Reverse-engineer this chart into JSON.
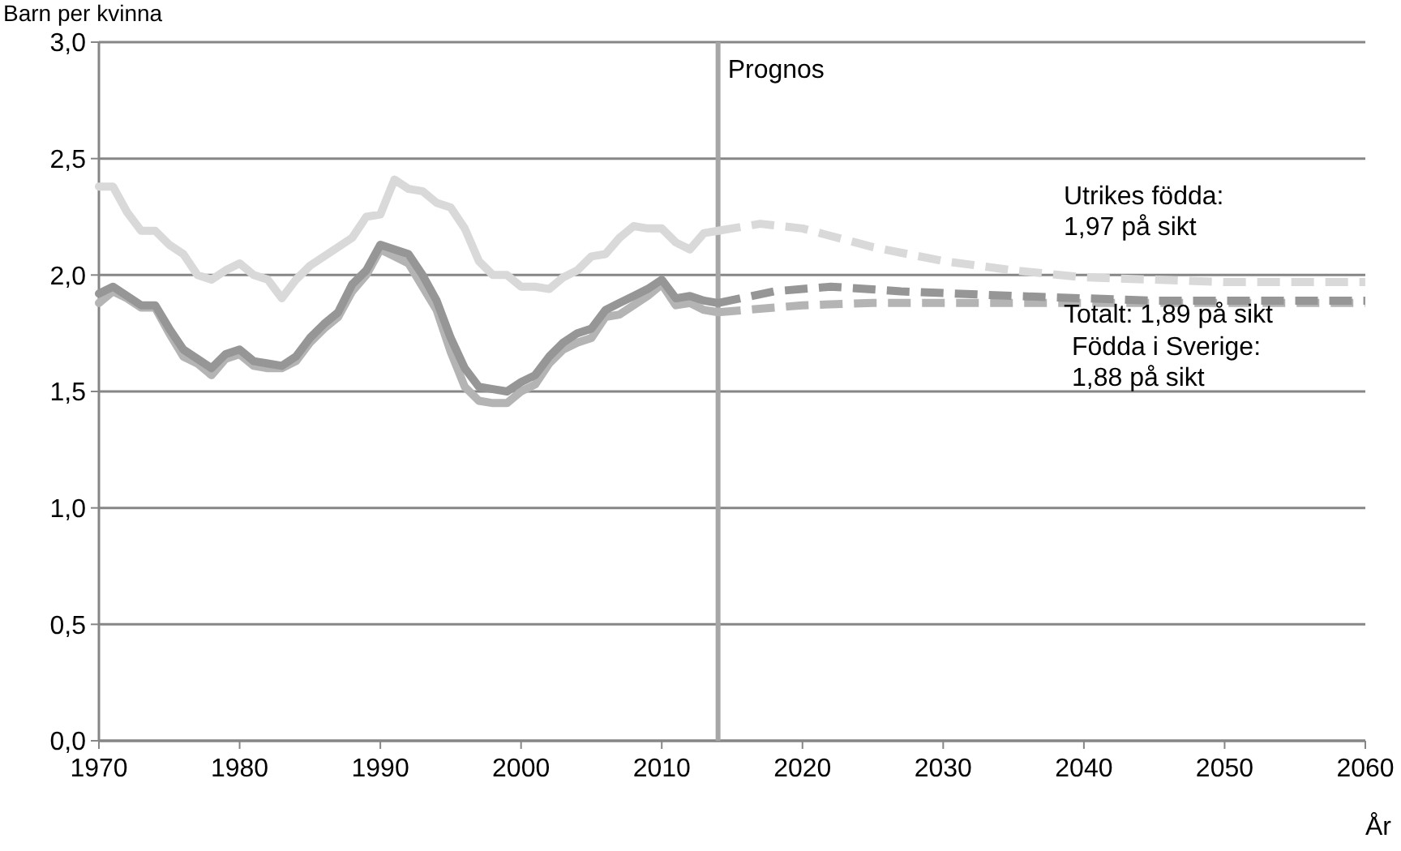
{
  "chart_data": {
    "type": "line",
    "ylabel": "Barn per kvinna",
    "xlabel": "År",
    "xlim": [
      1970,
      2060
    ],
    "xticks": [
      1970,
      1980,
      1990,
      2000,
      2010,
      2020,
      2030,
      2040,
      2050,
      2060
    ],
    "ylim": [
      0,
      3
    ],
    "yticks": [
      {
        "value": 0,
        "label": "0,0"
      },
      {
        "value": 0.5,
        "label": "0,5"
      },
      {
        "value": 1,
        "label": "1,0"
      },
      {
        "value": 1.5,
        "label": "1,5"
      },
      {
        "value": 2,
        "label": "2,0"
      },
      {
        "value": 2.5,
        "label": "2,5"
      },
      {
        "value": 3,
        "label": "3,0"
      }
    ],
    "grid": "y",
    "marker": "none",
    "series": [
      {
        "color": "#d9d9d9",
        "line_style": "solid",
        "x": [
          1970,
          1971,
          1972,
          1973,
          1974,
          1975,
          1976,
          1977,
          1978,
          1979,
          1980,
          1981,
          1982,
          1983,
          1984,
          1985,
          1986,
          1987,
          1988,
          1989,
          1990,
          1991,
          1992,
          1993,
          1994,
          1995,
          1996,
          1997,
          1998,
          1999,
          2000,
          2001,
          2002,
          2003,
          2004,
          2005,
          2006,
          2007,
          2008,
          2009,
          2010,
          2011,
          2012,
          2013,
          2014
        ],
        "values": [
          2.38,
          2.38,
          2.27,
          2.19,
          2.19,
          2.13,
          2.09,
          2.0,
          1.98,
          2.02,
          2.05,
          2.0,
          1.98,
          1.9,
          1.98,
          2.04,
          2.08,
          2.12,
          2.16,
          2.25,
          2.26,
          2.41,
          2.37,
          2.36,
          2.31,
          2.29,
          2.2,
          2.06,
          2.0,
          2.0,
          1.95,
          1.95,
          1.94,
          1.99,
          2.02,
          2.08,
          2.09,
          2.16,
          2.21,
          2.2,
          2.2,
          2.14,
          2.11,
          2.18,
          2.19
        ]
      },
      {
        "color": "#b4b4b4",
        "line_style": "solid",
        "x": [
          1970,
          1971,
          1972,
          1973,
          1974,
          1975,
          1976,
          1977,
          1978,
          1979,
          1980,
          1981,
          1982,
          1983,
          1984,
          1985,
          1986,
          1987,
          1988,
          1989,
          1990,
          1991,
          1992,
          1993,
          1994,
          1995,
          1996,
          1997,
          1998,
          1999,
          2000,
          2001,
          2002,
          2003,
          2004,
          2005,
          2006,
          2007,
          2008,
          2009,
          2010,
          2011,
          2012,
          2013,
          2014
        ],
        "values": [
          1.88,
          1.93,
          1.9,
          1.86,
          1.86,
          1.75,
          1.65,
          1.62,
          1.57,
          1.64,
          1.66,
          1.61,
          1.6,
          1.6,
          1.63,
          1.71,
          1.77,
          1.82,
          1.93,
          2.0,
          2.11,
          2.08,
          2.05,
          1.95,
          1.85,
          1.67,
          1.52,
          1.46,
          1.45,
          1.45,
          1.5,
          1.53,
          1.62,
          1.68,
          1.71,
          1.73,
          1.82,
          1.83,
          1.87,
          1.91,
          1.96,
          1.87,
          1.88,
          1.85,
          1.84
        ]
      },
      {
        "color": "#969696",
        "line_style": "solid",
        "x": [
          1970,
          1971,
          1972,
          1973,
          1974,
          1975,
          1976,
          1977,
          1978,
          1979,
          1980,
          1981,
          1982,
          1983,
          1984,
          1985,
          1986,
          1987,
          1988,
          1989,
          1990,
          1991,
          1992,
          1993,
          1994,
          1995,
          1996,
          1997,
          1998,
          1999,
          2000,
          2001,
          2002,
          2003,
          2004,
          2005,
          2006,
          2007,
          2008,
          2009,
          2010,
          2011,
          2012,
          2013,
          2014
        ],
        "values": [
          1.92,
          1.95,
          1.91,
          1.87,
          1.87,
          1.77,
          1.68,
          1.64,
          1.6,
          1.66,
          1.68,
          1.63,
          1.62,
          1.61,
          1.65,
          1.73,
          1.79,
          1.84,
          1.96,
          2.02,
          2.13,
          2.11,
          2.09,
          2.0,
          1.89,
          1.73,
          1.6,
          1.52,
          1.51,
          1.5,
          1.54,
          1.57,
          1.65,
          1.71,
          1.75,
          1.77,
          1.85,
          1.88,
          1.91,
          1.94,
          1.98,
          1.9,
          1.91,
          1.89,
          1.88
        ]
      },
      {
        "color": "#d9d9d9",
        "line_style": "dashed",
        "x": [
          2014,
          2017,
          2020,
          2025,
          2030,
          2035,
          2040,
          2045,
          2050,
          2060
        ],
        "values": [
          2.19,
          2.22,
          2.2,
          2.12,
          2.06,
          2.02,
          1.99,
          1.98,
          1.97,
          1.97
        ]
      },
      {
        "color": "#b4b4b4",
        "line_style": "dashed",
        "x": [
          2014,
          2020,
          2025,
          2030,
          2040,
          2060
        ],
        "values": [
          1.84,
          1.87,
          1.88,
          1.88,
          1.88,
          1.88
        ]
      },
      {
        "color": "#969696",
        "line_style": "dashed",
        "x": [
          2014,
          2018,
          2022,
          2027,
          2035,
          2045,
          2060
        ],
        "values": [
          1.88,
          1.93,
          1.95,
          1.93,
          1.91,
          1.89,
          1.89
        ]
      }
    ],
    "ref_lines": [
      {
        "axis": "x",
        "value": 2014,
        "label": "Prognos",
        "color": "#a6a6a6"
      }
    ],
    "annotations": [
      "Utrikes födda:\n1,97 på sikt",
      "Totalt: 1,89 på sikt",
      "Födda i Sverige:\n1,88 på sikt"
    ]
  }
}
